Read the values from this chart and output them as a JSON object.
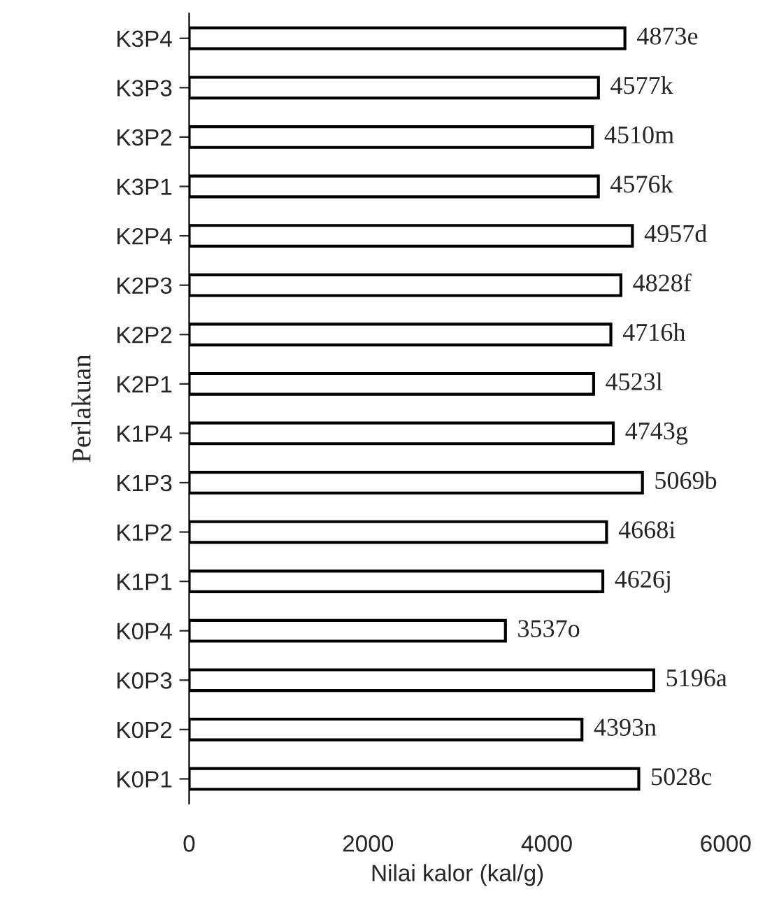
{
  "chart_data": {
    "type": "bar",
    "orientation": "horizontal",
    "ylabel": "Perlakuan",
    "xlabel": "Nilai kalor (kal/g)",
    "categories": [
      "K3P4",
      "K3P3",
      "K3P2",
      "K3P1",
      "K2P4",
      "K2P3",
      "K2P2",
      "K2P1",
      "K1P4",
      "K1P3",
      "K1P2",
      "K1P1",
      "K0P4",
      "K0P3",
      "K0P2",
      "K0P1"
    ],
    "values": [
      4873,
      4577,
      4510,
      4576,
      4957,
      4828,
      4716,
      4523,
      4743,
      5069,
      4668,
      4626,
      3537,
      5196,
      4393,
      5028
    ],
    "value_labels": [
      "4873e",
      "4577k",
      "4510m",
      "4576k",
      "4957d",
      "4828f",
      "4716h",
      "4523l",
      "4743g",
      "5069b",
      "4668i",
      "4626j",
      "3537o",
      "5196a",
      "4393n",
      "5028c"
    ],
    "color": "#ffffff",
    "xlim": [
      0,
      6000
    ],
    "xticks": [
      0,
      2000,
      4000,
      6000
    ],
    "grid": false,
    "legend": false
  }
}
